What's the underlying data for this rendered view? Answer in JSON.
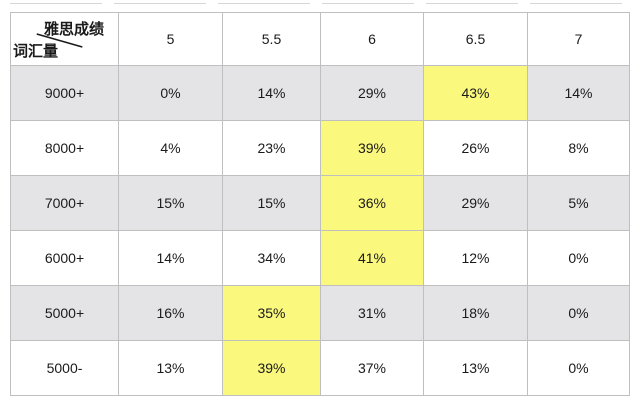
{
  "table": {
    "corner": {
      "top_label": "雅思成绩",
      "bottom_label": "词汇量"
    },
    "score_columns": [
      "5",
      "5.5",
      "6",
      "6.5",
      "7"
    ],
    "rows": [
      {
        "label": "9000+",
        "values": [
          "0%",
          "14%",
          "29%",
          "43%",
          "14%"
        ],
        "highlight_index": 3
      },
      {
        "label": "8000+",
        "values": [
          "4%",
          "23%",
          "39%",
          "26%",
          "8%"
        ],
        "highlight_index": 2
      },
      {
        "label": "7000+",
        "values": [
          "15%",
          "15%",
          "36%",
          "29%",
          "5%"
        ],
        "highlight_index": 2
      },
      {
        "label": "6000+",
        "values": [
          "14%",
          "34%",
          "41%",
          "12%",
          "0%"
        ],
        "highlight_index": 2
      },
      {
        "label": "5000+",
        "values": [
          "16%",
          "35%",
          "31%",
          "18%",
          "0%"
        ],
        "highlight_index": 1
      },
      {
        "label": "5000-",
        "values": [
          "13%",
          "39%",
          "37%",
          "13%",
          "0%"
        ],
        "highlight_index": 1
      }
    ]
  },
  "colors": {
    "highlight": "#fbf87e",
    "stripe": "#e4e4e6",
    "border_inner": "#bfbfbf",
    "border_outer": "#a2a2a2"
  },
  "chart_data": {
    "type": "table",
    "title": "",
    "column_axis_label": "雅思成绩",
    "row_axis_label": "词汇量",
    "columns": [
      "5",
      "5.5",
      "6",
      "6.5",
      "7"
    ],
    "row_labels": [
      "9000+",
      "8000+",
      "7000+",
      "6000+",
      "5000+",
      "5000-"
    ],
    "values_percent": [
      [
        0,
        14,
        29,
        43,
        14
      ],
      [
        4,
        23,
        39,
        26,
        8
      ],
      [
        15,
        15,
        36,
        29,
        5
      ],
      [
        14,
        34,
        41,
        12,
        0
      ],
      [
        16,
        35,
        31,
        18,
        0
      ],
      [
        13,
        39,
        37,
        13,
        0
      ]
    ],
    "highlighted_column_index_per_row": [
      3,
      2,
      2,
      2,
      1,
      1
    ],
    "highlight_meaning": "yellow cell = highest percentage in each row"
  }
}
